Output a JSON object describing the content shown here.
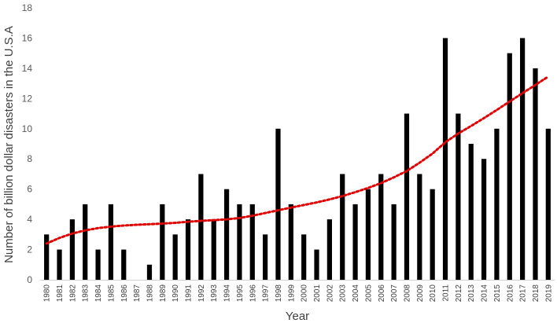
{
  "chart_data": {
    "type": "bar",
    "title": "",
    "xlabel": "Year",
    "ylabel": "Number of billion dollar disasters in the U.S.A",
    "ylim": [
      0,
      18
    ],
    "yticks": [
      0,
      2,
      4,
      6,
      8,
      10,
      12,
      14,
      16,
      18
    ],
    "grid": false,
    "categories": [
      "1980",
      "1981",
      "1982",
      "1983",
      "1984",
      "1985",
      "1986",
      "1987",
      "1988",
      "1989",
      "1990",
      "1991",
      "1992",
      "1993",
      "1994",
      "1995",
      "1996",
      "1997",
      "1998",
      "1999",
      "2000",
      "2001",
      "2002",
      "2003",
      "2004",
      "2005",
      "2006",
      "2007",
      "2008",
      "2009",
      "2010",
      "2011",
      "2012",
      "2013",
      "2014",
      "2015",
      "2016",
      "2017",
      "2018",
      "2019"
    ],
    "values": [
      3,
      2,
      4,
      5,
      2,
      5,
      2,
      0,
      1,
      5,
      3,
      4,
      7,
      4,
      6,
      5,
      5,
      3,
      10,
      5,
      3,
      2,
      4,
      7,
      5,
      6,
      7,
      5,
      11,
      7,
      6,
      16,
      11,
      9,
      8,
      10,
      15,
      16,
      14,
      10
    ],
    "bar_color": "#000000",
    "trendline": {
      "type": "polynomial",
      "style": "dotted",
      "color": "#e00000",
      "values": [
        2.4,
        2.77,
        3.06,
        3.27,
        3.42,
        3.52,
        3.59,
        3.64,
        3.68,
        3.72,
        3.77,
        3.84,
        3.9,
        3.95,
        4.0,
        4.09,
        4.24,
        4.42,
        4.6,
        4.78,
        4.95,
        5.12,
        5.32,
        5.54,
        5.8,
        6.08,
        6.4,
        6.78,
        7.2,
        7.75,
        8.35,
        9.1,
        9.68,
        10.18,
        10.7,
        11.24,
        11.8,
        12.35,
        12.9,
        13.45
      ]
    }
  }
}
